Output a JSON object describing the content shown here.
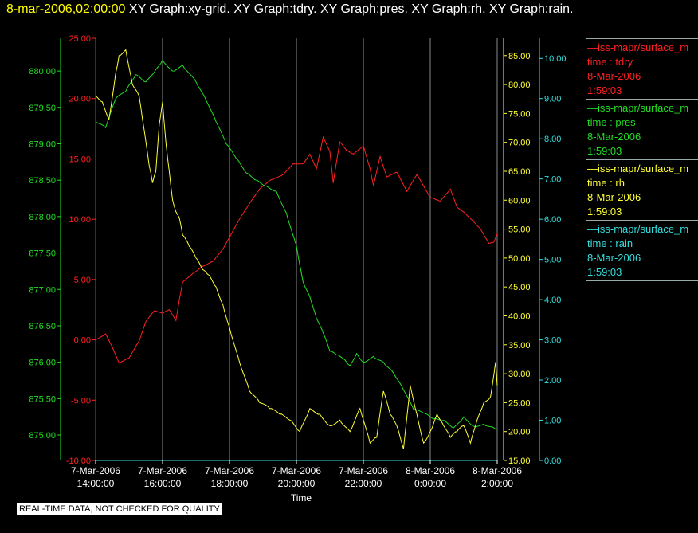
{
  "header": {
    "timestamp": "8-mar-2006,02:00:00",
    "graph_titles": "XY Graph:xy-grid.  XY Graph:tdry.  XY Graph:pres.  XY Graph:rh.  XY Graph:rain."
  },
  "legend": [
    {
      "line": "—iss-mapr/surface_m",
      "field": "time : tdry",
      "date": "8-Mar-2006",
      "time": "1:59:03",
      "color": "#ff2020"
    },
    {
      "line": "—iss-mapr/surface_m",
      "field": "time : pres",
      "date": "8-Mar-2006",
      "time": "1:59:03",
      "color": "#22dd22"
    },
    {
      "line": "—iss-mapr/surface_m",
      "field": "time : rh",
      "date": "8-Mar-2006",
      "time": "1:59:03",
      "color": "#ffff33"
    },
    {
      "line": "—iss-mapr/surface_m",
      "field": "time : rain",
      "date": "8-Mar-2006",
      "time": "1:59:03",
      "color": "#33dddd"
    }
  ],
  "footer": {
    "note": "REAL-TIME DATA, NOT CHECKED FOR QUALITY"
  },
  "chart_data": {
    "type": "line",
    "xlabel": "Time",
    "x_ticks": [
      {
        "date": "7-Mar-2006",
        "time": "14:00:00",
        "hour": 14
      },
      {
        "date": "7-Mar-2006",
        "time": "16:00:00",
        "hour": 16
      },
      {
        "date": "7-Mar-2006",
        "time": "18:00:00",
        "hour": 18
      },
      {
        "date": "7-Mar-2006",
        "time": "20:00:00",
        "hour": 20
      },
      {
        "date": "7-Mar-2006",
        "time": "22:00:00",
        "hour": 22
      },
      {
        "date": "8-Mar-2006",
        "time": "0:00:00",
        "hour": 24
      },
      {
        "date": "8-Mar-2006",
        "time": "2:00:00",
        "hour": 26
      }
    ],
    "xlim": [
      14,
      26
    ],
    "grid": "vertical",
    "axes": [
      {
        "id": "tdry",
        "color": "#ff2020",
        "ylim": [
          -10,
          25
        ],
        "ticks": [
          "-10.00",
          "-5.00",
          "0.00",
          "5.00",
          "10.00",
          "15.00",
          "20.00",
          "25.00"
        ]
      },
      {
        "id": "pres",
        "color": "#22dd22",
        "ylim": [
          874.65,
          880.45
        ],
        "ticks": [
          "875.00",
          "875.50",
          "876.00",
          "876.50",
          "877.00",
          "877.50",
          "878.00",
          "878.50",
          "879.00",
          "879.50",
          "880.00"
        ]
      },
      {
        "id": "rh",
        "color": "#ffff33",
        "ylim": [
          15,
          88
        ],
        "ticks": [
          "15.00",
          "20.00",
          "25.00",
          "30.00",
          "35.00",
          "40.00",
          "45.00",
          "50.00",
          "55.00",
          "60.00",
          "65.00",
          "70.00",
          "75.00",
          "80.00",
          "85.00"
        ]
      },
      {
        "id": "rain",
        "color": "#33dddd",
        "ylim": [
          0,
          10.5
        ],
        "ticks": [
          "0.00",
          "1.00",
          "2.00",
          "3.00",
          "4.00",
          "5.00",
          "6.00",
          "7.00",
          "8.00",
          "9.00",
          "10.00"
        ]
      }
    ],
    "series": [
      {
        "axis": "tdry",
        "color": "#ff2020",
        "x": [
          14.0,
          14.3,
          14.5,
          14.7,
          15.0,
          15.3,
          15.5,
          15.75,
          16.0,
          16.2,
          16.4,
          16.5,
          16.6,
          16.9,
          17.2,
          17.5,
          17.8,
          18.0,
          18.3,
          18.6,
          18.9,
          19.2,
          19.6,
          19.9,
          20.2,
          20.4,
          20.6,
          20.8,
          21.0,
          21.1,
          21.2,
          21.3,
          21.5,
          21.7,
          22.0,
          22.2,
          22.3,
          22.5,
          22.7,
          23.0,
          23.3,
          23.6,
          24.0,
          24.3,
          24.6,
          24.8,
          25.0,
          25.3,
          25.5,
          25.75,
          25.9,
          26.0
        ],
        "y": [
          0.0,
          0.5,
          -0.6,
          -1.9,
          -1.5,
          -0.1,
          1.5,
          2.4,
          2.2,
          2.5,
          1.6,
          3.3,
          4.8,
          5.5,
          6.1,
          6.5,
          7.5,
          8.5,
          10.0,
          11.3,
          12.5,
          13.2,
          13.7,
          14.6,
          14.6,
          15.4,
          14.2,
          16.8,
          15.6,
          13.0,
          14.8,
          16.4,
          15.7,
          15.4,
          16.1,
          14.2,
          12.8,
          15.2,
          13.5,
          13.9,
          12.3,
          13.7,
          11.8,
          11.5,
          12.5,
          11.0,
          10.6,
          9.8,
          9.2,
          8.0,
          8.1,
          8.8
        ]
      },
      {
        "axis": "pres",
        "color": "#22dd22",
        "x": [
          14.0,
          14.3,
          14.6,
          14.9,
          15.2,
          15.5,
          15.8,
          16.0,
          16.3,
          16.6,
          17.0,
          17.3,
          17.6,
          17.9,
          18.2,
          18.5,
          18.8,
          19.1,
          19.4,
          19.7,
          20.0,
          20.2,
          20.4,
          20.6,
          20.8,
          21.0,
          21.2,
          21.4,
          21.6,
          21.8,
          22.0,
          22.3,
          22.6,
          22.9,
          23.2,
          23.5,
          23.8,
          24.1,
          24.4,
          24.7,
          25.0,
          25.3,
          25.6,
          25.9,
          26.0
        ],
        "y": [
          879.3,
          879.22,
          879.62,
          879.72,
          879.95,
          879.85,
          880.02,
          880.15,
          880.0,
          880.08,
          879.85,
          879.6,
          879.3,
          879.0,
          878.8,
          878.6,
          878.5,
          878.42,
          878.35,
          878.05,
          877.6,
          877.1,
          876.9,
          876.6,
          876.4,
          876.15,
          876.1,
          876.05,
          875.95,
          876.12,
          876.0,
          876.08,
          876.0,
          875.85,
          875.62,
          875.35,
          875.3,
          875.22,
          875.2,
          875.1,
          875.25,
          875.12,
          875.15,
          875.1,
          875.08
        ]
      },
      {
        "axis": "rh",
        "color": "#ffff33",
        "x": [
          14.0,
          14.2,
          14.4,
          14.6,
          14.7,
          14.9,
          15.1,
          15.3,
          15.4,
          15.6,
          15.7,
          15.8,
          15.9,
          16.0,
          16.1,
          16.2,
          16.3,
          16.4,
          16.5,
          16.6,
          16.8,
          17.0,
          17.2,
          17.4,
          17.6,
          17.8,
          18.0,
          18.3,
          18.6,
          18.9,
          19.2,
          19.5,
          19.8,
          20.1,
          20.4,
          20.7,
          21.0,
          21.3,
          21.6,
          21.9,
          22.2,
          22.4,
          22.6,
          22.8,
          23.0,
          23.2,
          23.4,
          23.6,
          23.8,
          24.0,
          24.2,
          24.4,
          24.6,
          24.8,
          25.0,
          25.2,
          25.4,
          25.6,
          25.8,
          25.95,
          26.0
        ],
        "y": [
          78,
          77,
          74,
          82,
          85,
          86,
          80,
          78,
          74,
          66,
          63,
          65,
          73,
          77,
          70,
          65,
          60,
          58,
          57,
          54,
          52,
          50,
          48,
          47,
          45,
          42,
          38,
          32,
          27,
          25,
          24,
          23,
          22,
          20,
          24,
          23,
          21,
          22,
          20,
          24,
          18,
          19,
          27,
          23,
          21,
          17,
          28,
          23,
          18,
          20,
          23,
          21,
          19,
          20,
          21,
          18,
          22,
          25,
          26,
          32,
          28
        ]
      },
      {
        "axis": "rain",
        "color": "#33dddd",
        "x": [
          14.0,
          26.0
        ],
        "y": [
          0.0,
          0.0
        ]
      }
    ]
  }
}
